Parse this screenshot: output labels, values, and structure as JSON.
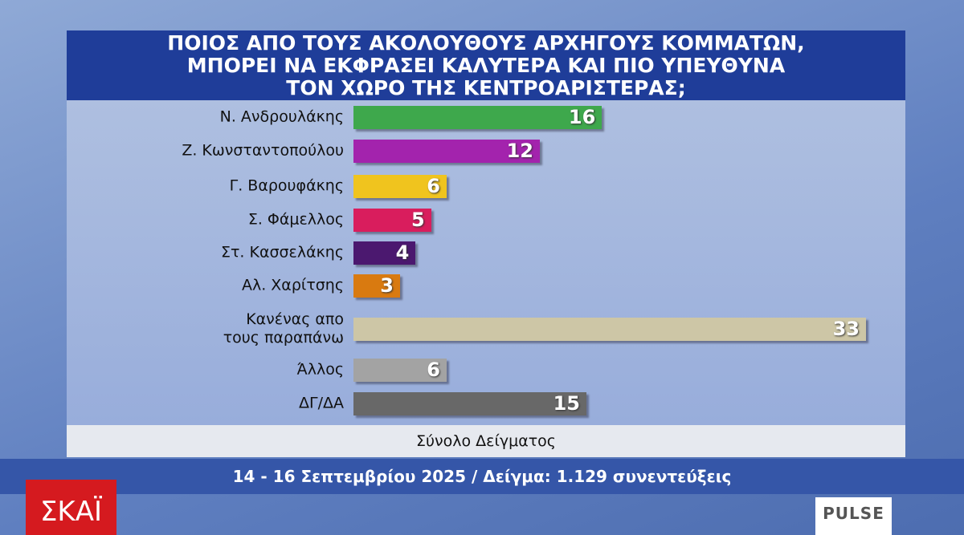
{
  "chart_data": {
    "type": "bar",
    "title": [
      "ΠΟΙΟΣ ΑΠΟ ΤΟΥΣ ΑΚΟΛΟΥΘΟΥΣ ΑΡΧΗΓΟΥΣ ΚΟΜΜΑΤΩΝ,",
      "ΜΠΟΡΕΙ ΝΑ ΕΚΦΡΑΣΕΙ ΚΑΛΥΤΕΡΑ ΚΑΙ ΠΙΟ ΥΠΕΥΘΥΝΑ",
      "ΤΟΝ ΧΩΡΟ ΤΗΣ ΚΕΝΤΡΟΑΡΙΣΤΕΡΑΣ;"
    ],
    "categories": [
      "Ν. Ανδρουλάκης",
      "Ζ. Κωνσταντοπούλου",
      "Γ. Βαρουφάκης",
      "Σ. Φάμελλος",
      "Στ. Κασσελάκης",
      "Αλ. Χαρίτσης",
      "Κανένας απο\nτους παραπάνω",
      "Άλλος",
      "ΔΓ/ΔΑ"
    ],
    "values": [
      16,
      12,
      6,
      5,
      4,
      3,
      33,
      6,
      15
    ],
    "colors": [
      "#3ea84c",
      "#a323ad",
      "#f0c41e",
      "#d91d5d",
      "#4b186f",
      "#d97a10",
      "#cdc6a6",
      "#a3a3a3",
      "#686868"
    ],
    "subtitle": "Σύνολο Δείγματος",
    "footnote": "14 - 16 Σεπτεμβρίου 2025 / Δείγμα: 1.129 συνεντεύξεις",
    "channel": "ΣΚΑΪ",
    "source": "PULSE"
  }
}
